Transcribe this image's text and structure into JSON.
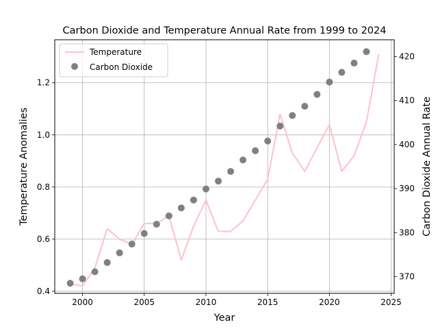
{
  "chart_data": {
    "type": "line",
    "title": "Carbon Dioxide and Temperature Annual Rate from 1999 to 2024",
    "xlabel": "Year",
    "ylabel_left": "Temperature Anomalies",
    "ylabel_right": "Carbon Dioxide Annual Rate",
    "xlim": [
      1997.75,
      2025.25
    ],
    "ylim_left": [
      0.392,
      1.365
    ],
    "ylim_right": [
      366.2,
      423.8
    ],
    "x_ticks": [
      2000,
      2005,
      2010,
      2015,
      2020,
      2025
    ],
    "y_left_ticks": [
      0.4,
      0.6,
      0.8,
      1.0,
      1.2
    ],
    "y_right_ticks": [
      370,
      380,
      390,
      400,
      410,
      420
    ],
    "grid": true,
    "legend_position": "top-left",
    "series": [
      {
        "name": "Temperature",
        "kind": "line",
        "axis": "left",
        "color": "#ffc0cb",
        "x": [
          1999,
          2000,
          2001,
          2002,
          2003,
          2004,
          2005,
          2006,
          2007,
          2008,
          2009,
          2010,
          2011,
          2012,
          2013,
          2014,
          2015,
          2016,
          2017,
          2018,
          2019,
          2020,
          2021,
          2022,
          2023,
          2024
        ],
        "values": [
          0.43,
          0.42,
          0.49,
          0.64,
          0.6,
          0.58,
          0.66,
          0.66,
          0.69,
          0.52,
          0.65,
          0.75,
          0.63,
          0.63,
          0.67,
          0.75,
          0.83,
          1.08,
          0.93,
          0.86,
          0.95,
          1.04,
          0.86,
          0.92,
          1.05,
          1.31
        ]
      },
      {
        "name": "Carbon Dioxide",
        "kind": "scatter",
        "axis": "right",
        "color": "#808080",
        "x": [
          1999,
          2000,
          2001,
          2002,
          2003,
          2004,
          2005,
          2006,
          2007,
          2008,
          2009,
          2010,
          2011,
          2012,
          2013,
          2014,
          2015,
          2016,
          2017,
          2018,
          2019,
          2020,
          2021,
          2022,
          2023
        ],
        "values": [
          368.5,
          369.5,
          371.1,
          373.2,
          375.4,
          377.4,
          379.8,
          381.9,
          383.8,
          385.6,
          387.4,
          389.9,
          391.7,
          393.9,
          396.5,
          398.6,
          400.8,
          404.2,
          406.6,
          408.7,
          411.4,
          414.2,
          416.4,
          418.5,
          421.1
        ]
      }
    ]
  }
}
